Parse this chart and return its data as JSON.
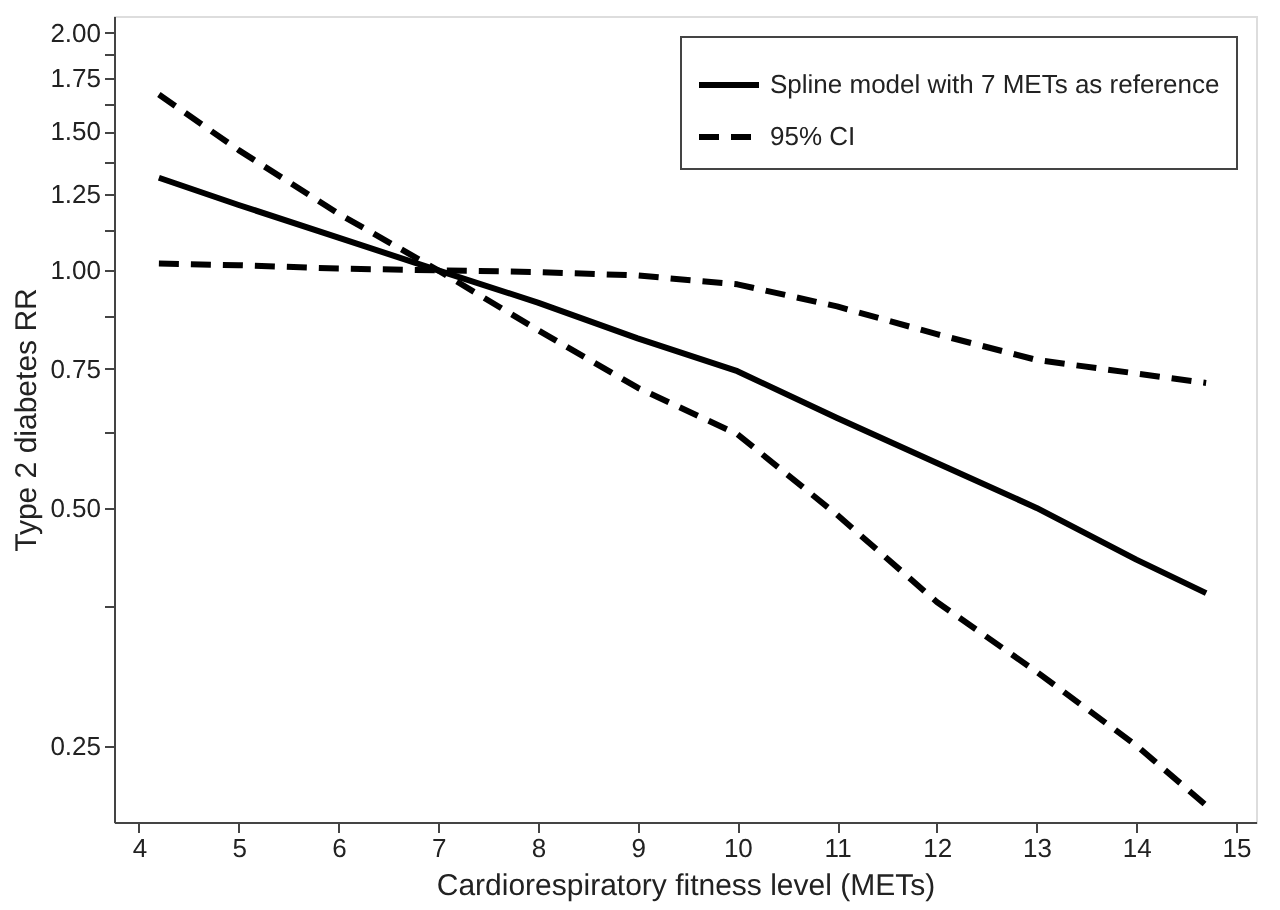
{
  "chart_data": {
    "type": "line",
    "xlabel": "Cardiorespiratory fitness level (METs)",
    "ylabel": "Type 2 diabetes RR",
    "x": [
      4.2,
      5,
      6,
      7,
      8,
      9,
      10,
      11,
      12,
      13,
      14,
      14.7
    ],
    "series": [
      {
        "name": "Spline model with 7 METs as reference",
        "color": "#000000",
        "line_style": "solid",
        "values": [
          1.31,
          1.21,
          1.1,
          1.0,
          0.91,
          0.82,
          0.745,
          0.65,
          0.57,
          0.5,
          0.43,
          0.39
        ]
      },
      {
        "name": "95% CI",
        "color": "#000000",
        "line_style": "dashed",
        "values": [
          1.02,
          1.015,
          1.005,
          1.0,
          0.995,
          0.985,
          0.96,
          0.9,
          0.83,
          0.77,
          0.74,
          0.72
        ]
      },
      {
        "color": "#000000",
        "line_style": "dashed",
        "values": [
          1.67,
          1.42,
          1.18,
          1.0,
          0.84,
          0.71,
          0.62,
          0.49,
          0.38,
          0.31,
          0.25,
          0.21
        ]
      }
    ],
    "log": "y",
    "xlim": [
      3.75,
      15.2
    ],
    "ylim": [
      0.2,
      2.1
    ],
    "xticks": [
      4,
      5,
      6,
      7,
      8,
      9,
      10,
      11,
      12,
      13,
      14,
      15
    ],
    "yticks": [
      {
        "value": 0.25,
        "label": "0.25"
      },
      {
        "value": 0.375,
        "label": null
      },
      {
        "value": 0.5,
        "label": "0.50"
      },
      {
        "value": 0.625,
        "label": null
      },
      {
        "value": 0.75,
        "label": "0.75"
      },
      {
        "value": 0.875,
        "label": null
      },
      {
        "value": 1.0,
        "label": "1.00"
      },
      {
        "value": 1.125,
        "label": null
      },
      {
        "value": 1.25,
        "label": "1.25"
      },
      {
        "value": 1.375,
        "label": null
      },
      {
        "value": 1.5,
        "label": "1.50"
      },
      {
        "value": 1.625,
        "label": null
      },
      {
        "value": 1.75,
        "label": "1.75"
      },
      {
        "value": 1.875,
        "label": null
      },
      {
        "value": 2.0,
        "label": "2.00"
      }
    ],
    "grid": false,
    "legend": "top right"
  }
}
